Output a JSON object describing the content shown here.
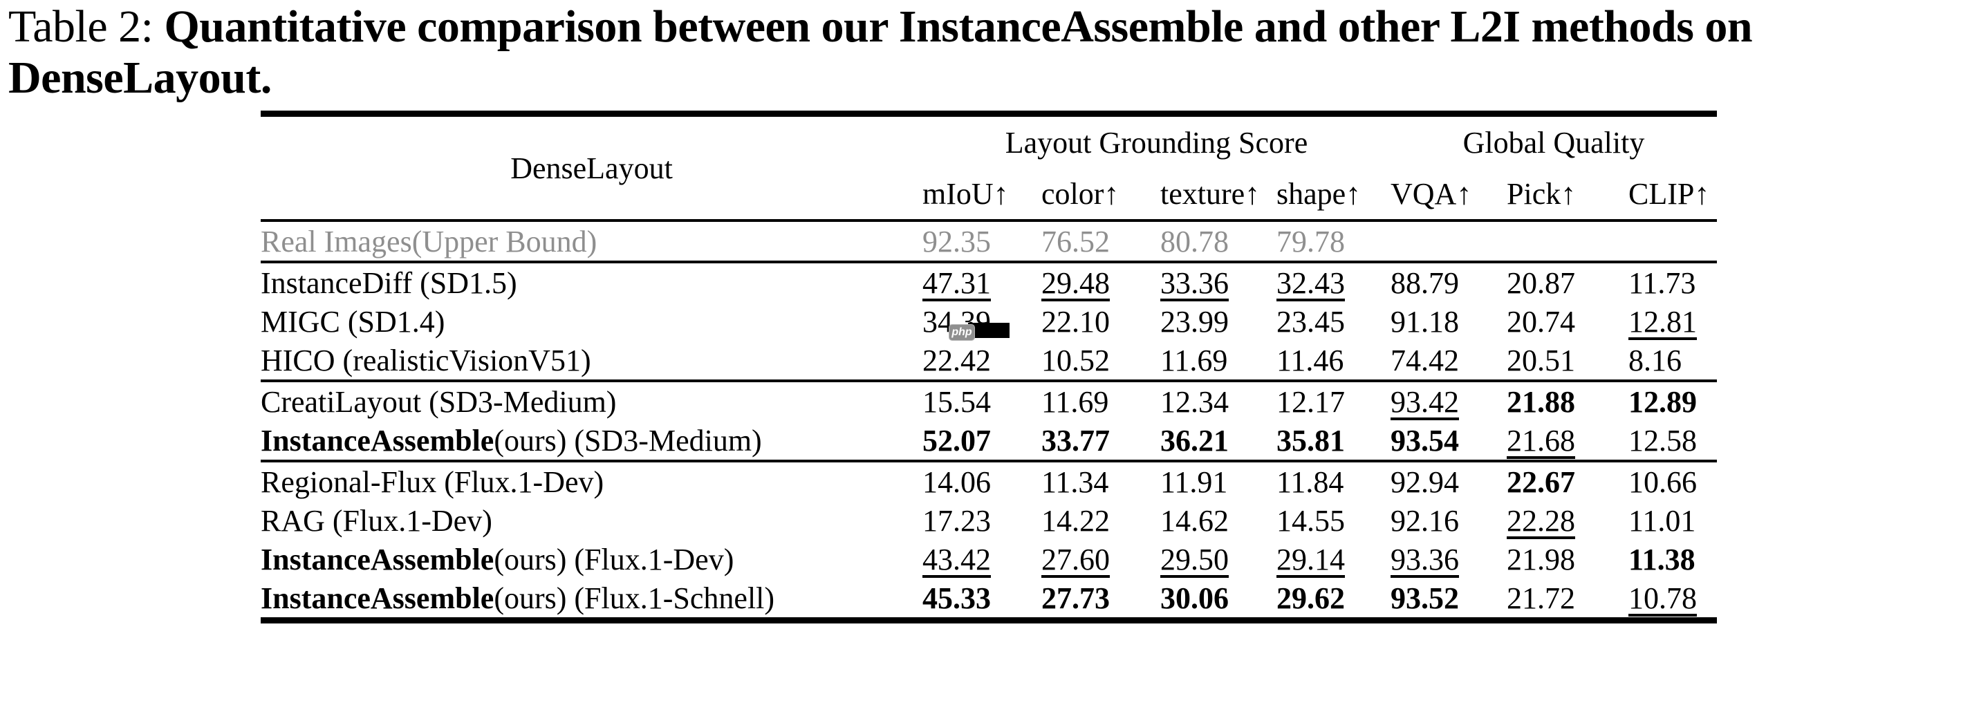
{
  "caption": {
    "label": "Table 2:",
    "bold_line1": "Quantitative comparison between our InstanceAssemble and other L2I methods on",
    "bold_line2": "DenseLayout."
  },
  "table": {
    "corner_label": "DenseLayout",
    "group_headers": [
      {
        "label": "Layout Grounding Score",
        "span": 4
      },
      {
        "label": "Global Quality",
        "span": 3
      }
    ],
    "columns": [
      "mIoU↑",
      "color↑",
      "texture↑",
      "shape↑",
      "VQA↑",
      "Pick↑",
      "CLIP↑"
    ],
    "upper_bound": {
      "label": "Real Images(Upper Bound)",
      "color": "#8f8f8f",
      "values": [
        {
          "v": "92.35"
        },
        {
          "v": "76.52"
        },
        {
          "v": "80.78"
        },
        {
          "v": "79.78"
        },
        {
          "v": ""
        },
        {
          "v": ""
        },
        {
          "v": ""
        }
      ]
    },
    "groups": [
      {
        "name": "sd15-group",
        "rows": [
          {
            "bold": "",
            "label": "InstanceDiff (SD1.5)",
            "values": [
              {
                "v": "47.31",
                "s": "u"
              },
              {
                "v": "29.48",
                "s": "u"
              },
              {
                "v": "33.36",
                "s": "u"
              },
              {
                "v": "32.43",
                "s": "u"
              },
              {
                "v": "88.79"
              },
              {
                "v": "20.87"
              },
              {
                "v": "11.73"
              }
            ]
          },
          {
            "bold": "",
            "label": "MIGC (SD1.4)",
            "values": [
              {
                "v": "34.39",
                "artifact": true
              },
              {
                "v": "22.10"
              },
              {
                "v": "23.99"
              },
              {
                "v": "23.45"
              },
              {
                "v": "91.18"
              },
              {
                "v": "20.74"
              },
              {
                "v": "12.81",
                "s": "u"
              }
            ]
          },
          {
            "bold": "",
            "label": "HICO (realisticVisionV51)",
            "values": [
              {
                "v": "22.42"
              },
              {
                "v": "10.52"
              },
              {
                "v": "11.69"
              },
              {
                "v": "11.46"
              },
              {
                "v": "74.42"
              },
              {
                "v": "20.51"
              },
              {
                "v": "8.16"
              }
            ]
          }
        ]
      },
      {
        "name": "sd3-group",
        "rows": [
          {
            "bold": "",
            "label": "CreatiLayout (SD3-Medium)",
            "values": [
              {
                "v": "15.54"
              },
              {
                "v": "11.69"
              },
              {
                "v": "12.34"
              },
              {
                "v": "12.17"
              },
              {
                "v": "93.42",
                "s": "u"
              },
              {
                "v": "21.88",
                "s": "b"
              },
              {
                "v": "12.89",
                "s": "b"
              }
            ]
          },
          {
            "bold": "InstanceAssemble",
            "label": "(ours) (SD3-Medium)",
            "values": [
              {
                "v": "52.07",
                "s": "b"
              },
              {
                "v": "33.77",
                "s": "b"
              },
              {
                "v": "36.21",
                "s": "b"
              },
              {
                "v": "35.81",
                "s": "b"
              },
              {
                "v": "93.54",
                "s": "b"
              },
              {
                "v": "21.68",
                "s": "u"
              },
              {
                "v": "12.58"
              }
            ]
          }
        ]
      },
      {
        "name": "flux-group",
        "rows": [
          {
            "bold": "",
            "label": "Regional-Flux (Flux.1-Dev)",
            "values": [
              {
                "v": "14.06"
              },
              {
                "v": "11.34"
              },
              {
                "v": "11.91"
              },
              {
                "v": "11.84"
              },
              {
                "v": "92.94"
              },
              {
                "v": "22.67",
                "s": "b"
              },
              {
                "v": "10.66"
              }
            ]
          },
          {
            "bold": "",
            "label": "RAG (Flux.1-Dev)",
            "values": [
              {
                "v": "17.23"
              },
              {
                "v": "14.22"
              },
              {
                "v": "14.62"
              },
              {
                "v": "14.55"
              },
              {
                "v": "92.16"
              },
              {
                "v": "22.28",
                "s": "u"
              },
              {
                "v": "11.01"
              }
            ]
          },
          {
            "bold": "InstanceAssemble",
            "label": "(ours) (Flux.1-Dev)",
            "values": [
              {
                "v": "43.42",
                "s": "u"
              },
              {
                "v": "27.60",
                "s": "u"
              },
              {
                "v": "29.50",
                "s": "u"
              },
              {
                "v": "29.14",
                "s": "u"
              },
              {
                "v": "93.36",
                "s": "u"
              },
              {
                "v": "21.98"
              },
              {
                "v": "11.38",
                "s": "b"
              }
            ]
          },
          {
            "bold": "InstanceAssemble",
            "label": "(ours) (Flux.1-Schnell)",
            "values": [
              {
                "v": "45.33",
                "s": "b"
              },
              {
                "v": "27.73",
                "s": "b"
              },
              {
                "v": "30.06",
                "s": "b"
              },
              {
                "v": "29.62",
                "s": "b"
              },
              {
                "v": "93.52",
                "s": "b"
              },
              {
                "v": "21.72"
              },
              {
                "v": "10.78",
                "s": "u"
              }
            ]
          }
        ]
      }
    ],
    "artifact": {
      "badge_text": "php",
      "badge_bg": "#8f8f8f",
      "bar_color": "#000000"
    }
  }
}
